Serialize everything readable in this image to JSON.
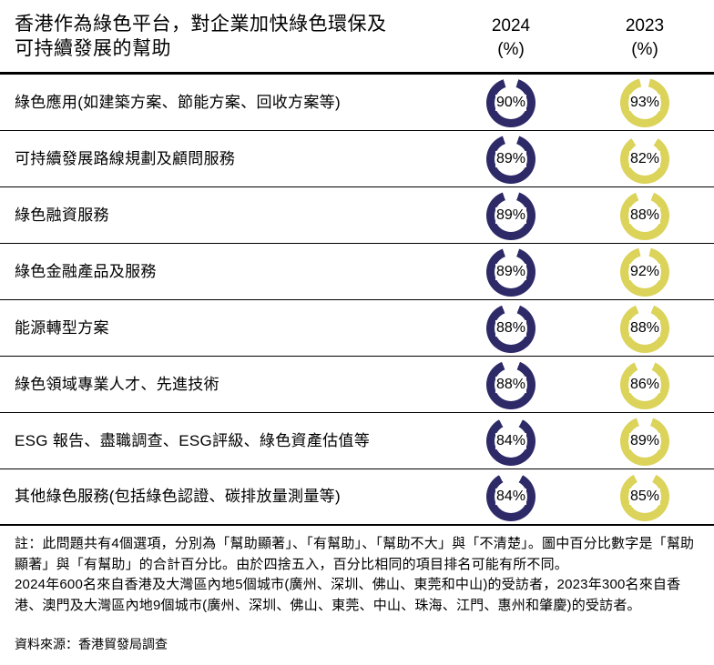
{
  "title_line1": "香港作為綠色平台，對企業加快綠色環保及",
  "title_line2": "可持續發展的幫助",
  "columns": [
    {
      "year": "2024",
      "unit": "(%)"
    },
    {
      "year": "2023",
      "unit": "(%)"
    }
  ],
  "colors": {
    "y2024": "#2E2A68",
    "y2023": "#DBD35A"
  },
  "rows": [
    {
      "label": "綠色應用(如建築方案、節能方案、回收方案等)",
      "v2024": 90,
      "v2023": 93
    },
    {
      "label": "可持續發展路線規劃及顧問服務",
      "v2024": 89,
      "v2023": 82
    },
    {
      "label": "綠色融資服務",
      "v2024": 89,
      "v2023": 88
    },
    {
      "label": "綠色金融產品及服務",
      "v2024": 89,
      "v2023": 92
    },
    {
      "label": "能源轉型方案",
      "v2024": 88,
      "v2023": 88
    },
    {
      "label": "綠色領域專業人才、先進技術",
      "v2024": 88,
      "v2023": 86
    },
    {
      "label": "ESG 報告、盡職調查、ESG評級、綠色資產估值等",
      "v2024": 84,
      "v2023": 89
    },
    {
      "label": "其他綠色服務(包括綠色認證、碳排放量測量等)",
      "v2024": 84,
      "v2023": 85
    }
  ],
  "notes": [
    "註：此問題共有4個選項，分別為「幫助顯著」、「有幫助」、「幫助不大」與「不清楚」。圖中百分比數字是「幫助顯著」與「有幫助」的合計百分比。由於四捨五入，百分比相同的項目排名可能有所不同。",
    "2024年600名來自香港及大灣區內地5個城市(廣州、深圳、佛山、東莞和中山)的受訪者，2023年300名來自香港、澳門及大灣區內地9個城市(廣州、深圳、佛山、東莞、中山、珠海、江門、惠州和肇慶)的受訪者。"
  ],
  "source": "資料來源：香港貿發局調查",
  "chart_data": {
    "type": "table",
    "title": "香港作為綠色平台，對企業加快綠色環保及可持續發展的幫助",
    "display": "donut-rings",
    "categories": [
      "綠色應用(如建築方案、節能方案、回收方案等)",
      "可持續發展路線規劃及顧問服務",
      "綠色融資服務",
      "綠色金融產品及服務",
      "能源轉型方案",
      "綠色領域專業人才、先進技術",
      "ESG 報告、盡職調查、ESG評級、綠色資產估值等",
      "其他綠色服務(包括綠色認證、碳排放量測量等)"
    ],
    "series": [
      {
        "name": "2024 (%)",
        "color": "#2E2A68",
        "values": [
          90,
          89,
          89,
          89,
          88,
          88,
          84,
          84
        ]
      },
      {
        "name": "2023 (%)",
        "color": "#DBD35A",
        "values": [
          93,
          82,
          88,
          92,
          88,
          86,
          89,
          85
        ]
      }
    ],
    "value_range": [
      0,
      100
    ],
    "legend_position": "column-headers"
  }
}
